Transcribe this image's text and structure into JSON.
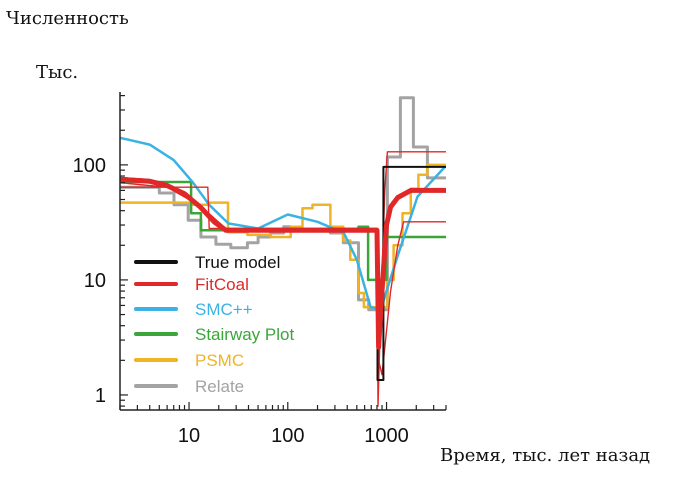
{
  "chart_data": {
    "type": "line",
    "title": "",
    "ylabel": "Численность",
    "ylabel_unit": "Тыс.",
    "xlabel": "Время, тыс. лет назад",
    "xscale": "log",
    "yscale": "log",
    "xlim": [
      2,
      4000
    ],
    "ylim": [
      0.74,
      430
    ],
    "x_ticks": [
      {
        "value": 10,
        "label": "10"
      },
      {
        "value": 100,
        "label": "100"
      },
      {
        "value": 1000,
        "label": "1000"
      }
    ],
    "y_ticks": [
      {
        "value": 1,
        "label": "1"
      },
      {
        "value": 10,
        "label": "10"
      },
      {
        "value": 100,
        "label": "100"
      }
    ],
    "grid": false,
    "legend_position": "bottom-left",
    "series": [
      {
        "name": "Relate",
        "color": "#a3a3a3",
        "step": true,
        "width": 3,
        "legend": true,
        "points": [
          [
            2,
            64
          ],
          [
            5,
            57
          ],
          [
            7.05,
            45
          ],
          [
            9.8,
            33
          ],
          [
            13.2,
            23.6
          ],
          [
            18.7,
            20.4
          ],
          [
            26.5,
            19
          ],
          [
            39,
            21
          ],
          [
            50,
            23.6
          ],
          [
            67,
            25.6
          ],
          [
            91,
            29
          ],
          [
            107,
            27
          ],
          [
            270,
            25.6
          ],
          [
            365,
            21
          ],
          [
            520,
            6.7
          ],
          [
            660,
            5.5
          ],
          [
            1020,
            117
          ],
          [
            1380,
            383
          ],
          [
            1870,
            143
          ],
          [
            2590,
            77
          ],
          [
            4000,
            77
          ]
        ]
      },
      {
        "name": "PSMC",
        "color": "#f0b323",
        "step": true,
        "width": 2.5,
        "legend": true,
        "points": [
          [
            2,
            47
          ],
          [
            10.5,
            45
          ],
          [
            15.5,
            47
          ],
          [
            24.8,
            26
          ],
          [
            39,
            24.6
          ],
          [
            67,
            23.6
          ],
          [
            107,
            29
          ],
          [
            141,
            42
          ],
          [
            178,
            45
          ],
          [
            270,
            29
          ],
          [
            365,
            22
          ],
          [
            430,
            15
          ],
          [
            520,
            7.7
          ],
          [
            590,
            5.8
          ],
          [
            1020,
            10
          ],
          [
            1180,
            20
          ],
          [
            1450,
            38
          ],
          [
            1760,
            62
          ],
          [
            2100,
            82
          ],
          [
            2590,
            100
          ],
          [
            4000,
            100
          ]
        ]
      },
      {
        "name": "Stairway Plot",
        "color": "#3aa63a",
        "step": true,
        "width": 2.5,
        "legend": true,
        "points": [
          [
            2,
            71
          ],
          [
            10.5,
            38
          ],
          [
            13.2,
            27
          ],
          [
            520,
            29
          ],
          [
            650,
            10
          ],
          [
            1000,
            23.6
          ],
          [
            4000,
            23.6
          ]
        ]
      },
      {
        "name": "SMC++",
        "color": "#3ab3e3",
        "step": false,
        "width": 2.5,
        "legend": true,
        "points": [
          [
            2,
            172
          ],
          [
            4,
            150
          ],
          [
            7,
            110
          ],
          [
            11,
            70
          ],
          [
            16,
            45
          ],
          [
            25,
            31
          ],
          [
            50,
            28
          ],
          [
            100,
            37
          ],
          [
            200,
            32
          ],
          [
            370,
            25.6
          ],
          [
            500,
            15
          ],
          [
            690,
            5.8
          ],
          [
            870,
            5.5
          ],
          [
            1000,
            8
          ],
          [
            1290,
            16
          ],
          [
            2060,
            53
          ],
          [
            3900,
            96
          ]
        ]
      },
      {
        "name": "FitCoal",
        "color": "#e02828",
        "step": false,
        "width": 1.4,
        "legend": false,
        "points": [
          [
            2,
            64
          ],
          [
            15.5,
            64
          ],
          [
            16,
            28
          ],
          [
            23.6,
            28
          ],
          [
            800,
            28
          ],
          [
            820,
            0.8
          ],
          [
            870,
            5
          ],
          [
            960,
            60
          ],
          [
            1020,
            130
          ],
          [
            4000,
            130
          ]
        ]
      },
      {
        "name": "FitCoal",
        "color": "#e02828",
        "step": false,
        "width": 1.4,
        "legend": false,
        "points": [
          [
            2,
            70
          ],
          [
            6,
            64
          ],
          [
            13,
            44
          ],
          [
            23.6,
            28
          ],
          [
            800,
            28
          ],
          [
            830,
            2
          ],
          [
            900,
            1.5
          ],
          [
            1100,
            8
          ],
          [
            1300,
            20
          ],
          [
            1490,
            32
          ],
          [
            4000,
            32
          ]
        ]
      },
      {
        "name": "True model",
        "color": "#111111",
        "step": false,
        "width": 2,
        "legend": true,
        "points": [
          [
            2,
            77
          ],
          [
            4,
            74
          ],
          [
            6,
            68
          ],
          [
            9,
            57
          ],
          [
            13,
            44
          ],
          [
            18,
            33
          ],
          [
            23.6,
            27
          ],
          [
            810,
            27
          ],
          [
            810,
            1.35
          ],
          [
            930,
            1.35
          ],
          [
            930,
            96
          ],
          [
            4000,
            96
          ]
        ]
      },
      {
        "name": "FitCoal",
        "color": "#e02828",
        "step": false,
        "width": 5,
        "legend": true,
        "points": [
          [
            2,
            75
          ],
          [
            4,
            72
          ],
          [
            6,
            66
          ],
          [
            9,
            56
          ],
          [
            13,
            43
          ],
          [
            18,
            32
          ],
          [
            23.6,
            27
          ],
          [
            800,
            27
          ],
          [
            830,
            2.6
          ],
          [
            900,
            8
          ],
          [
            1000,
            30
          ],
          [
            1100,
            43
          ],
          [
            1300,
            52
          ],
          [
            1760,
            60
          ],
          [
            4000,
            60
          ]
        ]
      }
    ],
    "legend_order": [
      "True model",
      "FitCoal",
      "SMC++",
      "Stairway Plot",
      "PSMC",
      "Relate"
    ]
  }
}
